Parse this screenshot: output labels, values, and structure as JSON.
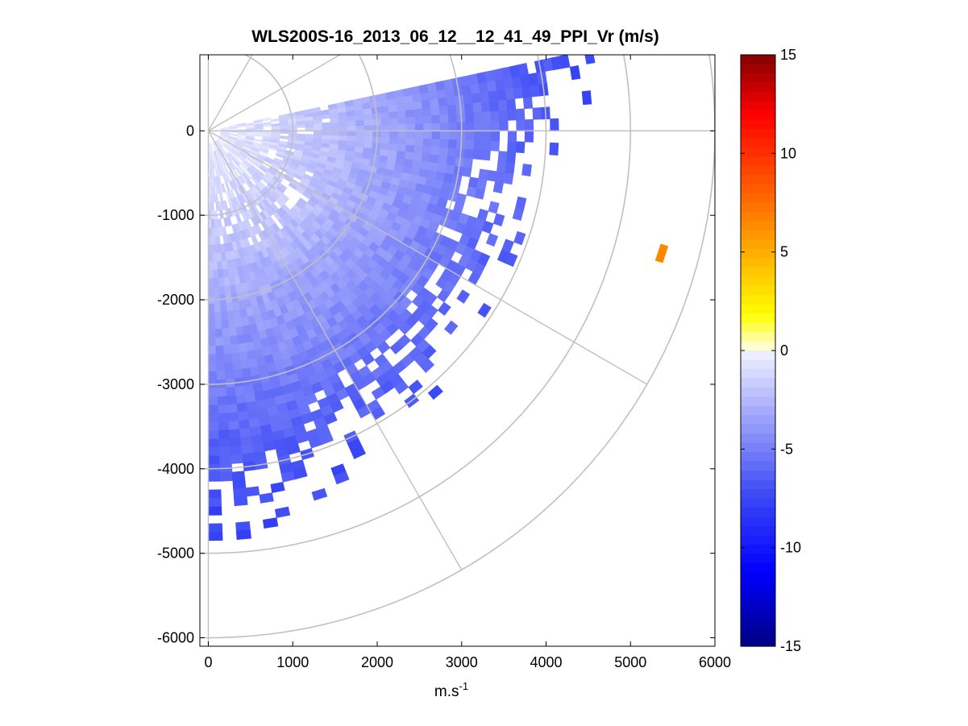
{
  "chart_data": {
    "type": "heatmap",
    "subtype": "polar PPI scan",
    "title": "WLS200S-16_2013_06_12__12_41_49_PPI_Vr (m/s)",
    "xlabel": "m.s",
    "xlabel_superscript": "-1",
    "ylabel": "",
    "xlim": [
      -100,
      6000
    ],
    "ylim": [
      -6100,
      900
    ],
    "x_ticks": [
      0,
      1000,
      2000,
      3000,
      4000,
      5000,
      6000
    ],
    "x_tick_labels": [
      "0",
      "1000",
      "2000",
      "3000",
      "4000",
      "5000",
      "6000"
    ],
    "y_ticks": [
      0,
      -1000,
      -2000,
      -3000,
      -4000,
      -5000,
      -6000
    ],
    "y_tick_labels": [
      "0",
      "-1000",
      "-2000",
      "-3000",
      "-4000",
      "-5000",
      "-6000"
    ],
    "polar_grid": {
      "center": [
        0,
        0
      ],
      "ring_ranges": [
        1000,
        2000,
        3000,
        4000,
        5000,
        6000
      ],
      "spokes_deg_from_east": [
        0,
        -30,
        -60,
        30,
        60
      ]
    },
    "colorbar": {
      "range": [
        -15,
        15
      ],
      "ticks": [
        15,
        10,
        5,
        0,
        -5,
        -10,
        -15
      ],
      "tick_labels": [
        "15",
        "10",
        "5",
        "0",
        "-5",
        "-10",
        "-15"
      ],
      "levels": 64
    },
    "radial_velocity_profile": {
      "range_m": [
        0,
        500,
        1000,
        1500,
        2000,
        2500,
        3000,
        3500,
        4000,
        4500
      ],
      "vr_m_s": [
        -0.4,
        -0.9,
        -1.6,
        -2.4,
        -3.3,
        -4.2,
        -5.1,
        -6.0,
        -6.8,
        -7.4
      ]
    },
    "sector_deg": [
      -90,
      12
    ],
    "max_valid_range_m": [
      4500,
      4300,
      3900,
      3700,
      3600,
      3500,
      3500,
      3400,
      3600,
      3900,
      4100
    ],
    "outlier_gates": [
      {
        "x": 5370,
        "y": -1450,
        "vr": 6.5
      }
    ]
  },
  "colors": {
    "grid": "#c0c0c0",
    "axis": "#000000",
    "background": "#ffffff"
  }
}
